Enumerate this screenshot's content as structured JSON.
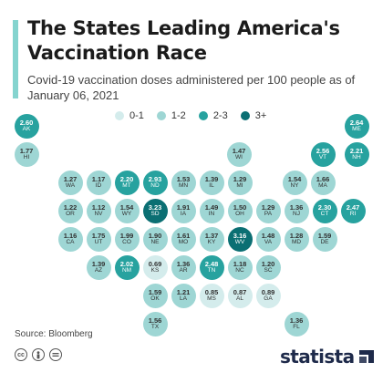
{
  "title": "The States Leading America's Vaccination Race",
  "subtitle": "Covid-19 vaccination doses administered per 100 people as of January 06, 2021",
  "legend": [
    {
      "label": "0-1",
      "color": "#d4ecec"
    },
    {
      "label": "1-2",
      "color": "#9ed6d4"
    },
    {
      "label": "2-3",
      "color": "#27a29f"
    },
    {
      "label": "3+",
      "color": "#0b6f73"
    }
  ],
  "states": [
    {
      "code": "AK",
      "value": "2.60",
      "bin": "2-3"
    },
    {
      "code": "HI",
      "value": "1.77",
      "bin": "1-2"
    },
    {
      "code": "ME",
      "value": "2.64",
      "bin": "2-3"
    },
    {
      "code": "WI",
      "value": "1.47",
      "bin": "1-2"
    },
    {
      "code": "VT",
      "value": "2.56",
      "bin": "2-3"
    },
    {
      "code": "NH",
      "value": "2.21",
      "bin": "2-3"
    },
    {
      "code": "WA",
      "value": "1.27",
      "bin": "1-2"
    },
    {
      "code": "ID",
      "value": "1.17",
      "bin": "1-2"
    },
    {
      "code": "MT",
      "value": "2.20",
      "bin": "2-3"
    },
    {
      "code": "ND",
      "value": "2.93",
      "bin": "2-3"
    },
    {
      "code": "MN",
      "value": "1.53",
      "bin": "1-2"
    },
    {
      "code": "IL",
      "value": "1.39",
      "bin": "1-2"
    },
    {
      "code": "MI",
      "value": "1.29",
      "bin": "1-2"
    },
    {
      "code": "NY",
      "value": "1.54",
      "bin": "1-2"
    },
    {
      "code": "MA",
      "value": "1.66",
      "bin": "1-2"
    },
    {
      "code": "OR",
      "value": "1.22",
      "bin": "1-2"
    },
    {
      "code": "NV",
      "value": "1.12",
      "bin": "1-2"
    },
    {
      "code": "WY",
      "value": "1.54",
      "bin": "1-2"
    },
    {
      "code": "SD",
      "value": "3.23",
      "bin": "3+"
    },
    {
      "code": "IA",
      "value": "1.91",
      "bin": "1-2"
    },
    {
      "code": "IN",
      "value": "1.49",
      "bin": "1-2"
    },
    {
      "code": "OH",
      "value": "1.50",
      "bin": "1-2"
    },
    {
      "code": "PA",
      "value": "1.29",
      "bin": "1-2"
    },
    {
      "code": "NJ",
      "value": "1.36",
      "bin": "1-2"
    },
    {
      "code": "CT",
      "value": "2.30",
      "bin": "2-3"
    },
    {
      "code": "RI",
      "value": "2.47",
      "bin": "2-3"
    },
    {
      "code": "CA",
      "value": "1.16",
      "bin": "1-2"
    },
    {
      "code": "UT",
      "value": "1.75",
      "bin": "1-2"
    },
    {
      "code": "CO",
      "value": "1.99",
      "bin": "1-2"
    },
    {
      "code": "NE",
      "value": "1.90",
      "bin": "1-2"
    },
    {
      "code": "MO",
      "value": "1.61",
      "bin": "1-2"
    },
    {
      "code": "KY",
      "value": "1.37",
      "bin": "1-2"
    },
    {
      "code": "WV",
      "value": "3.16",
      "bin": "3+"
    },
    {
      "code": "VA",
      "value": "1.48",
      "bin": "1-2"
    },
    {
      "code": "MD",
      "value": "1.28",
      "bin": "1-2"
    },
    {
      "code": "DE",
      "value": "1.59",
      "bin": "1-2"
    },
    {
      "code": "AZ",
      "value": "1.39",
      "bin": "1-2"
    },
    {
      "code": "NM",
      "value": "2.02",
      "bin": "2-3"
    },
    {
      "code": "KS",
      "value": "0.69",
      "bin": "0-1"
    },
    {
      "code": "AR",
      "value": "1.36",
      "bin": "1-2"
    },
    {
      "code": "TN",
      "value": "2.48",
      "bin": "2-3"
    },
    {
      "code": "NC",
      "value": "1.18",
      "bin": "1-2"
    },
    {
      "code": "SC",
      "value": "1.20",
      "bin": "1-2"
    },
    {
      "code": "OK",
      "value": "1.59",
      "bin": "1-2"
    },
    {
      "code": "LA",
      "value": "1.21",
      "bin": "1-2"
    },
    {
      "code": "MS",
      "value": "0.85",
      "bin": "0-1"
    },
    {
      "code": "AL",
      "value": "0.87",
      "bin": "0-1"
    },
    {
      "code": "GA",
      "value": "0.89",
      "bin": "0-1"
    },
    {
      "code": "TX",
      "value": "1.56",
      "bin": "1-2"
    },
    {
      "code": "FL",
      "value": "1.36",
      "bin": "1-2"
    }
  ],
  "footer": {
    "source": "Source: Bloomberg",
    "cc_icons": [
      "cc-icon",
      "by-icon",
      "nd-icon"
    ],
    "brand": "statista"
  }
}
